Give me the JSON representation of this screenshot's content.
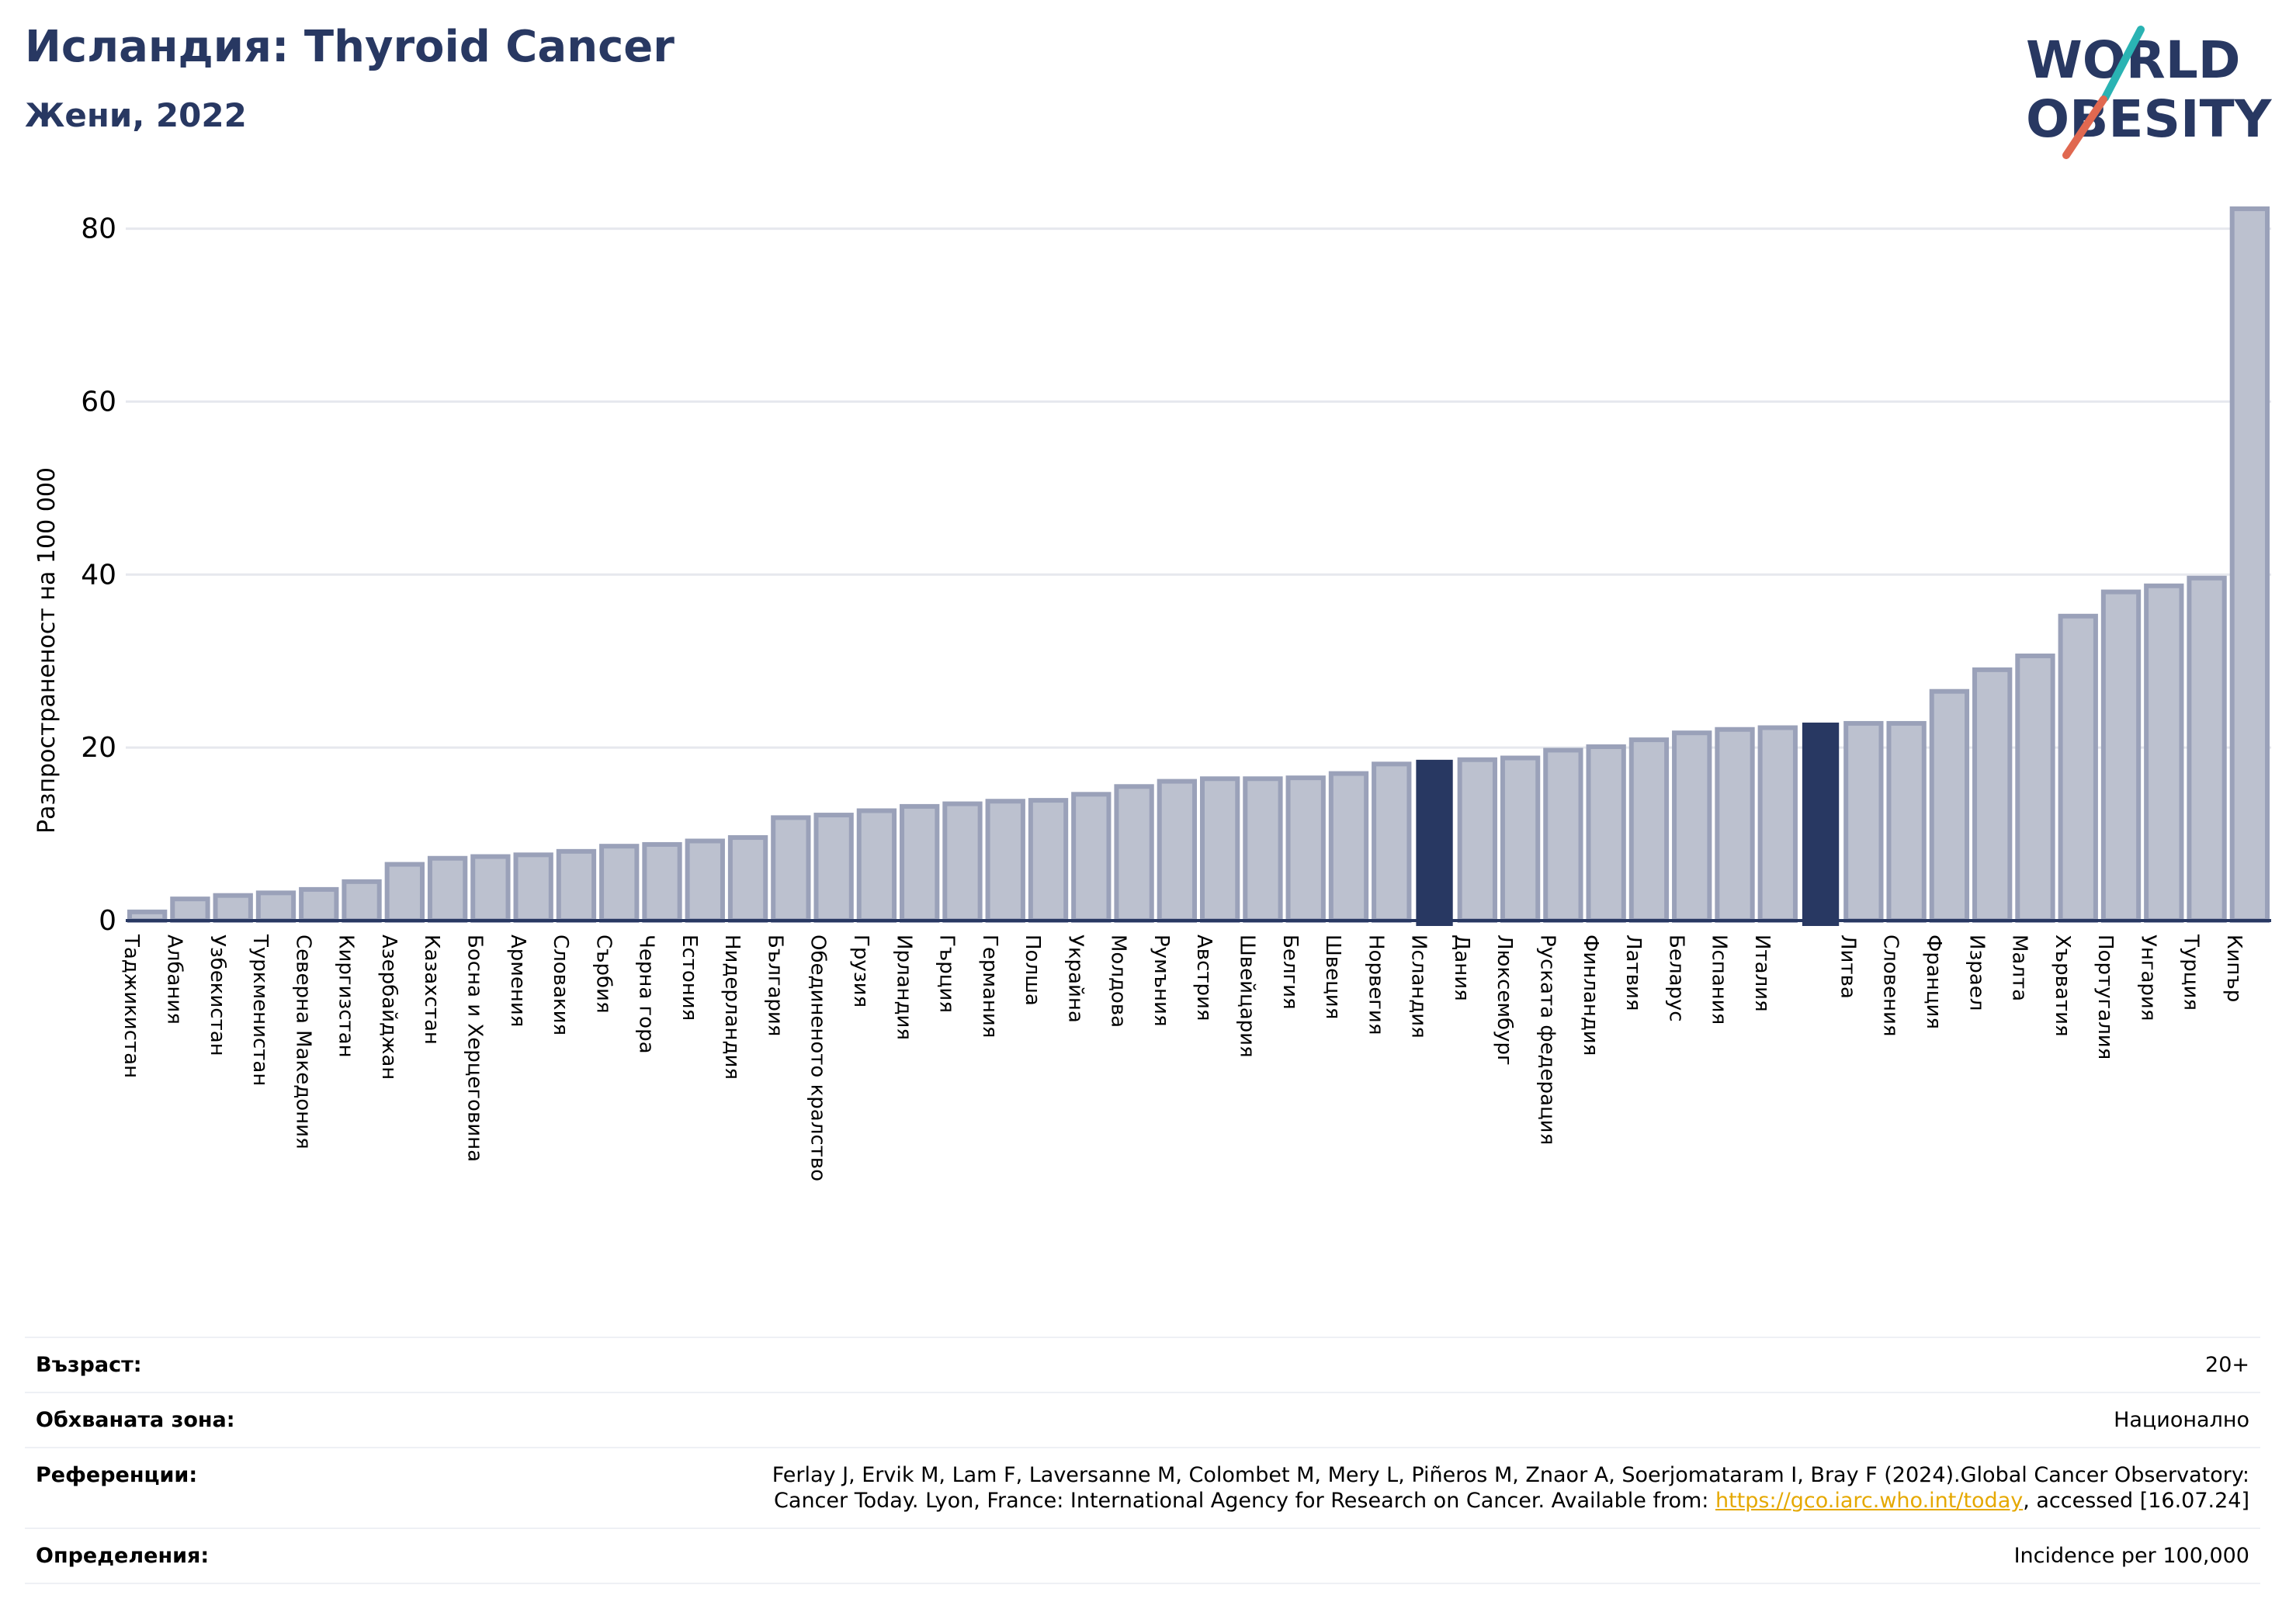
{
  "header": {
    "title": "Исландия: Thyroid Cancer",
    "subtitle": "Жени, 2022"
  },
  "logo": {
    "line1": "WORLD",
    "line2": "OBESITY"
  },
  "colors": {
    "bar": "#bcc1cf",
    "bar_border": "#9aa1b9",
    "highlight": "#283862",
    "grid": "#e6e8ee",
    "title": "#283862",
    "link": "#e5a800"
  },
  "chart_data": {
    "type": "bar",
    "ylabel": "Разпространеност  на 100 000",
    "ylim": [
      0,
      84
    ],
    "yticks": [
      0,
      20,
      40,
      60,
      80
    ],
    "grid": true,
    "highlight": [
      "Исландия",
      ""
    ],
    "categories": [
      "Таджикистан",
      "Албания",
      "Узбекистан",
      "Туркменистан",
      "Северна Македония",
      "Киргизстан",
      "Азербайджан",
      "Казахстан",
      "Босна и Херцеговина",
      "Армения",
      "Словакия",
      "Сърбия",
      "Черна гора",
      "Естония",
      "Нидерландия",
      "България",
      "Обединеното кралство",
      "Грузия",
      "Ирландия",
      "Гърция",
      "Германия",
      "Полша",
      "Украйна",
      "Молдова",
      "Румъния",
      "Австрия",
      "Швейцария",
      "Белгия",
      "Швеция",
      "Норвегия",
      "Исландия",
      "Дания",
      "Люксембург",
      "Руската федерация",
      "Финландия",
      "Латвия",
      "Беларус",
      "Испания",
      "Италия",
      "",
      "Литва",
      "Словения",
      "Франция",
      "Израел",
      "Малта",
      "Хърватия",
      "Португалия",
      "Унгария",
      "Турция",
      "Кипър"
    ],
    "values": [
      1.0,
      2.5,
      2.9,
      3.2,
      3.6,
      4.5,
      6.5,
      7.2,
      7.4,
      7.6,
      8.0,
      8.6,
      8.8,
      9.2,
      9.6,
      11.9,
      12.2,
      12.7,
      13.2,
      13.5,
      13.8,
      13.9,
      14.6,
      15.5,
      16.1,
      16.4,
      16.4,
      16.5,
      17.0,
      18.1,
      18.5,
      18.6,
      18.8,
      19.7,
      20.1,
      20.9,
      21.7,
      22.1,
      22.3,
      22.8,
      22.8,
      22.8,
      26.5,
      29.0,
      30.6,
      35.2,
      38.0,
      38.7,
      39.6,
      82.3
    ]
  },
  "footer": {
    "age": {
      "label": "Възраст:",
      "value": "20+"
    },
    "coverage": {
      "label": "Обхваната зона:",
      "value": "Национално"
    },
    "references": {
      "label": "Референции:",
      "line1": "Ferlay J, Ervik M, Lam F, Laversanne M, Colombet M, Mery L, Piñeros M, Znaor A, Soerjomataram I, Bray F (2024).Global Cancer Observatory:",
      "line2_prefix": "Cancer Today. Lyon, France: International Agency for Research on Cancer. Available from: ",
      "link": "https://gco.iarc.who.int/today",
      "line2_suffix": ", accessed [16.07.24]"
    },
    "definitions": {
      "label": "Определения:",
      "value": "Incidence per 100,000"
    }
  }
}
